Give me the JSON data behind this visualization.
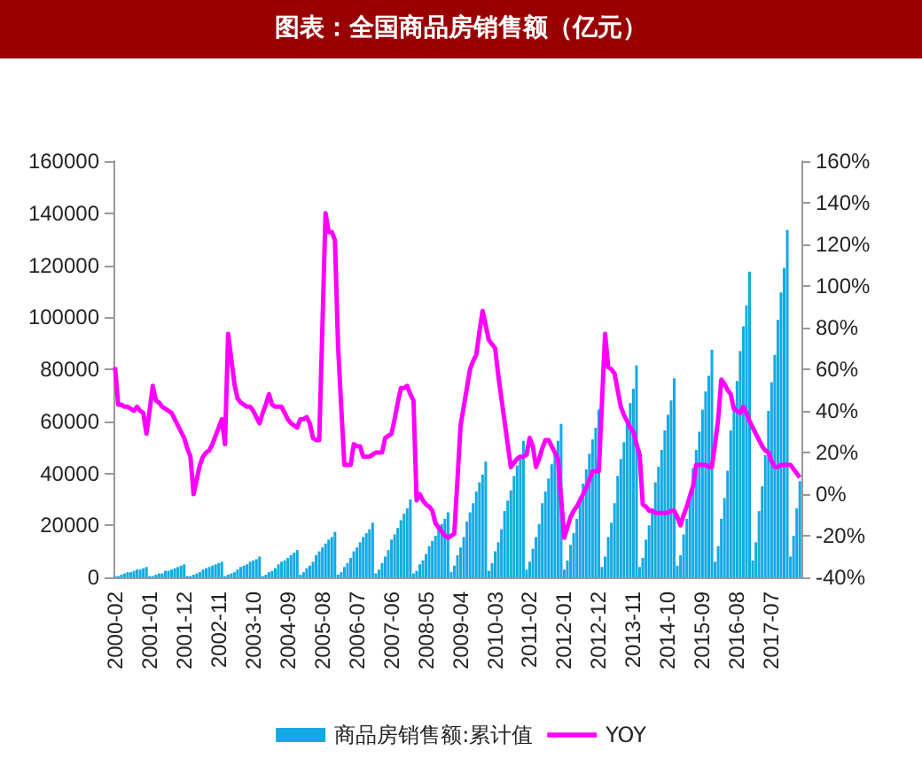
{
  "chart_data": {
    "type": "bar",
    "title": "图表：全国商品房销售额（亿元）",
    "categories": [
      "2000-02",
      null,
      null,
      null,
      null,
      null,
      null,
      null,
      null,
      null,
      null,
      "2001-01",
      null,
      null,
      null,
      null,
      null,
      null,
      null,
      null,
      null,
      null,
      "2001-12",
      null,
      null,
      null,
      null,
      null,
      null,
      null,
      null,
      null,
      null,
      "2002-11",
      null,
      null,
      null,
      null,
      null,
      null,
      null,
      null,
      null,
      null,
      "2003-10",
      null,
      null,
      null,
      null,
      null,
      null,
      null,
      null,
      null,
      null,
      "2004-09",
      null,
      null,
      null,
      null,
      null,
      null,
      null,
      null,
      null,
      null,
      "2005-08",
      null,
      null,
      null,
      null,
      null,
      null,
      null,
      null,
      null,
      null,
      "2006-07",
      null,
      null,
      null,
      null,
      null,
      null,
      null,
      null,
      null,
      null,
      "2007-06",
      null,
      null,
      null,
      null,
      null,
      null,
      null,
      null,
      null,
      null,
      "2008-05",
      null,
      null,
      null,
      null,
      null,
      null,
      null,
      null,
      null,
      null,
      "2009-04",
      null,
      null,
      null,
      null,
      null,
      null,
      null,
      null,
      null,
      null,
      "2010-03",
      null,
      null,
      null,
      null,
      null,
      null,
      null,
      null,
      null,
      null,
      "2011-02",
      null,
      null,
      null,
      null,
      null,
      null,
      null,
      null,
      null,
      null,
      "2012-01",
      null,
      null,
      null,
      null,
      null,
      null,
      null,
      null,
      null,
      null,
      "2012-12",
      null,
      null,
      null,
      null,
      null,
      null,
      null,
      null,
      null,
      null,
      "2013-11",
      null,
      null,
      null,
      null,
      null,
      null,
      null,
      null,
      null,
      null,
      "2014-10",
      null,
      null,
      null,
      null,
      null,
      null,
      null,
      null,
      null,
      null,
      "2015-09",
      null,
      null,
      null,
      null,
      null,
      null,
      null,
      null,
      null,
      null,
      "2016-08",
      null,
      null,
      null,
      null,
      null,
      null,
      null,
      null,
      null,
      null,
      "2017-07",
      null,
      null,
      null,
      null,
      null,
      null,
      null,
      null,
      null
    ],
    "series": [
      {
        "name": "商品房销售额:累计值",
        "color": "#14a9e3",
        "values": [
          500,
          500,
          1000,
          1500,
          2000,
          2000,
          2500,
          3000,
          3000,
          3500,
          4000,
          500,
          500,
          1000,
          1500,
          1500,
          2500,
          2500,
          3000,
          3500,
          4000,
          4500,
          5000,
          500,
          500,
          1000,
          1500,
          2000,
          3000,
          3500,
          4000,
          4500,
          5000,
          5500,
          6000,
          500,
          1000,
          1500,
          2000,
          3000,
          4000,
          4500,
          5000,
          6000,
          6500,
          7000,
          8000,
          500,
          1000,
          2000,
          2500,
          3500,
          5000,
          6000,
          6500,
          7500,
          8500,
          9500,
          10500,
          1000,
          2000,
          3500,
          4500,
          6000,
          8500,
          10000,
          11500,
          13000,
          14500,
          15500,
          17500,
          1000,
          2000,
          4000,
          5500,
          7500,
          10000,
          11500,
          13500,
          15500,
          17000,
          18500,
          21000,
          1500,
          3000,
          5500,
          8000,
          10500,
          14500,
          16500,
          19000,
          22000,
          24500,
          26500,
          30000,
          1500,
          2500,
          5000,
          6500,
          9000,
          12000,
          14000,
          16000,
          18500,
          20500,
          22500,
          25000,
          2000,
          4500,
          8500,
          11500,
          15500,
          21500,
          25000,
          28500,
          33000,
          36500,
          39500,
          44500,
          2500,
          5500,
          10000,
          13500,
          18500,
          25500,
          29500,
          33500,
          39000,
          43000,
          47000,
          52500,
          3000,
          6000,
          11000,
          15500,
          20500,
          28500,
          33000,
          38000,
          43500,
          48500,
          52500,
          59000,
          3000,
          6500,
          12500,
          17000,
          22500,
          31000,
          36000,
          41500,
          47500,
          53000,
          57500,
          64500,
          4000,
          8000,
          15500,
          21000,
          28500,
          39000,
          45500,
          52000,
          60000,
          67000,
          72500,
          81500,
          4000,
          7500,
          14500,
          20000,
          26500,
          36500,
          42500,
          49000,
          56500,
          62500,
          68000,
          76500,
          4500,
          8500,
          16500,
          22500,
          30500,
          42000,
          49000,
          56000,
          64500,
          71500,
          77500,
          87500,
          6000,
          12000,
          22500,
          30500,
          41000,
          56500,
          66000,
          75500,
          87000,
          96500,
          104500,
          117500,
          6500,
          13500,
          25500,
          35000,
          47000,
          64000,
          75000,
          85500,
          99000,
          109500,
          119000,
          133500,
          8000,
          16000,
          26500,
          37000
        ]
      },
      {
        "name": "YOY",
        "type": "line",
        "axis": "y2",
        "color": "#ff00ff",
        "values": [
          61,
          43,
          43,
          42,
          42,
          41,
          40,
          42,
          40,
          39,
          29,
          40,
          52,
          45,
          44,
          42,
          41,
          40,
          39,
          36,
          33,
          30,
          27,
          22,
          18,
          0,
          7,
          14,
          18,
          20,
          21,
          24,
          28,
          32,
          36,
          24,
          77,
          65,
          53,
          46,
          44,
          43,
          42,
          42,
          40,
          37,
          34,
          39,
          43,
          48,
          43,
          42,
          42,
          42,
          39,
          36,
          34,
          33,
          32,
          36,
          36,
          37,
          34,
          27,
          26,
          26,
          80,
          135,
          126,
          126,
          122,
          71,
          42,
          14,
          14,
          14,
          24,
          23,
          23,
          18,
          18,
          18,
          19,
          20,
          20,
          20,
          27,
          28,
          29,
          36,
          44,
          51,
          51,
          52,
          48,
          45,
          -3,
          0,
          -3,
          -5,
          -6,
          -8,
          -14,
          -16,
          -18,
          -20,
          -21,
          -20,
          -19,
          7,
          33,
          42,
          51,
          60,
          64,
          67,
          78,
          88,
          81,
          74,
          72,
          70,
          57,
          46,
          35,
          24,
          13,
          15,
          17,
          18,
          18,
          19,
          27,
          23,
          13,
          17,
          22,
          26,
          26,
          23,
          20,
          17,
          -2,
          -21,
          -16,
          -11,
          -8,
          -6,
          -3,
          0,
          3,
          7,
          11,
          11,
          11,
          44,
          77,
          61,
          60,
          58,
          50,
          42,
          38,
          35,
          32,
          30,
          24,
          19,
          -5,
          -6,
          -8,
          -8,
          -9,
          -9,
          -9,
          -9,
          -9,
          -8,
          -8,
          -11,
          -15,
          -10,
          -6,
          -1,
          4,
          14,
          14,
          14,
          14,
          13,
          13,
          24,
          36,
          55,
          53,
          50,
          48,
          41,
          40,
          39,
          42,
          39,
          35,
          32,
          29,
          26,
          23,
          21,
          20,
          16,
          13,
          13,
          14,
          14,
          14,
          14,
          12,
          10,
          8
        ]
      }
    ],
    "ylim": [
      0,
      160000
    ],
    "yticks": [
      0,
      20000,
      40000,
      60000,
      80000,
      100000,
      120000,
      140000,
      160000
    ],
    "y2lim": [
      -40,
      160
    ],
    "y2ticks": [
      {
        "value": -40,
        "label": "-40%"
      },
      {
        "value": -20,
        "label": "-20%"
      },
      {
        "value": 0,
        "label": "0%"
      },
      {
        "value": 20,
        "label": "20%"
      },
      {
        "value": 40,
        "label": "40%"
      },
      {
        "value": 60,
        "label": "60%"
      },
      {
        "value": 80,
        "label": "80%"
      },
      {
        "value": 100,
        "label": "100%"
      },
      {
        "value": 120,
        "label": "120%"
      },
      {
        "value": 140,
        "label": "140%"
      },
      {
        "value": 160,
        "label": "160%"
      }
    ],
    "grid": false,
    "legend": "bottom",
    "marker": "none"
  }
}
